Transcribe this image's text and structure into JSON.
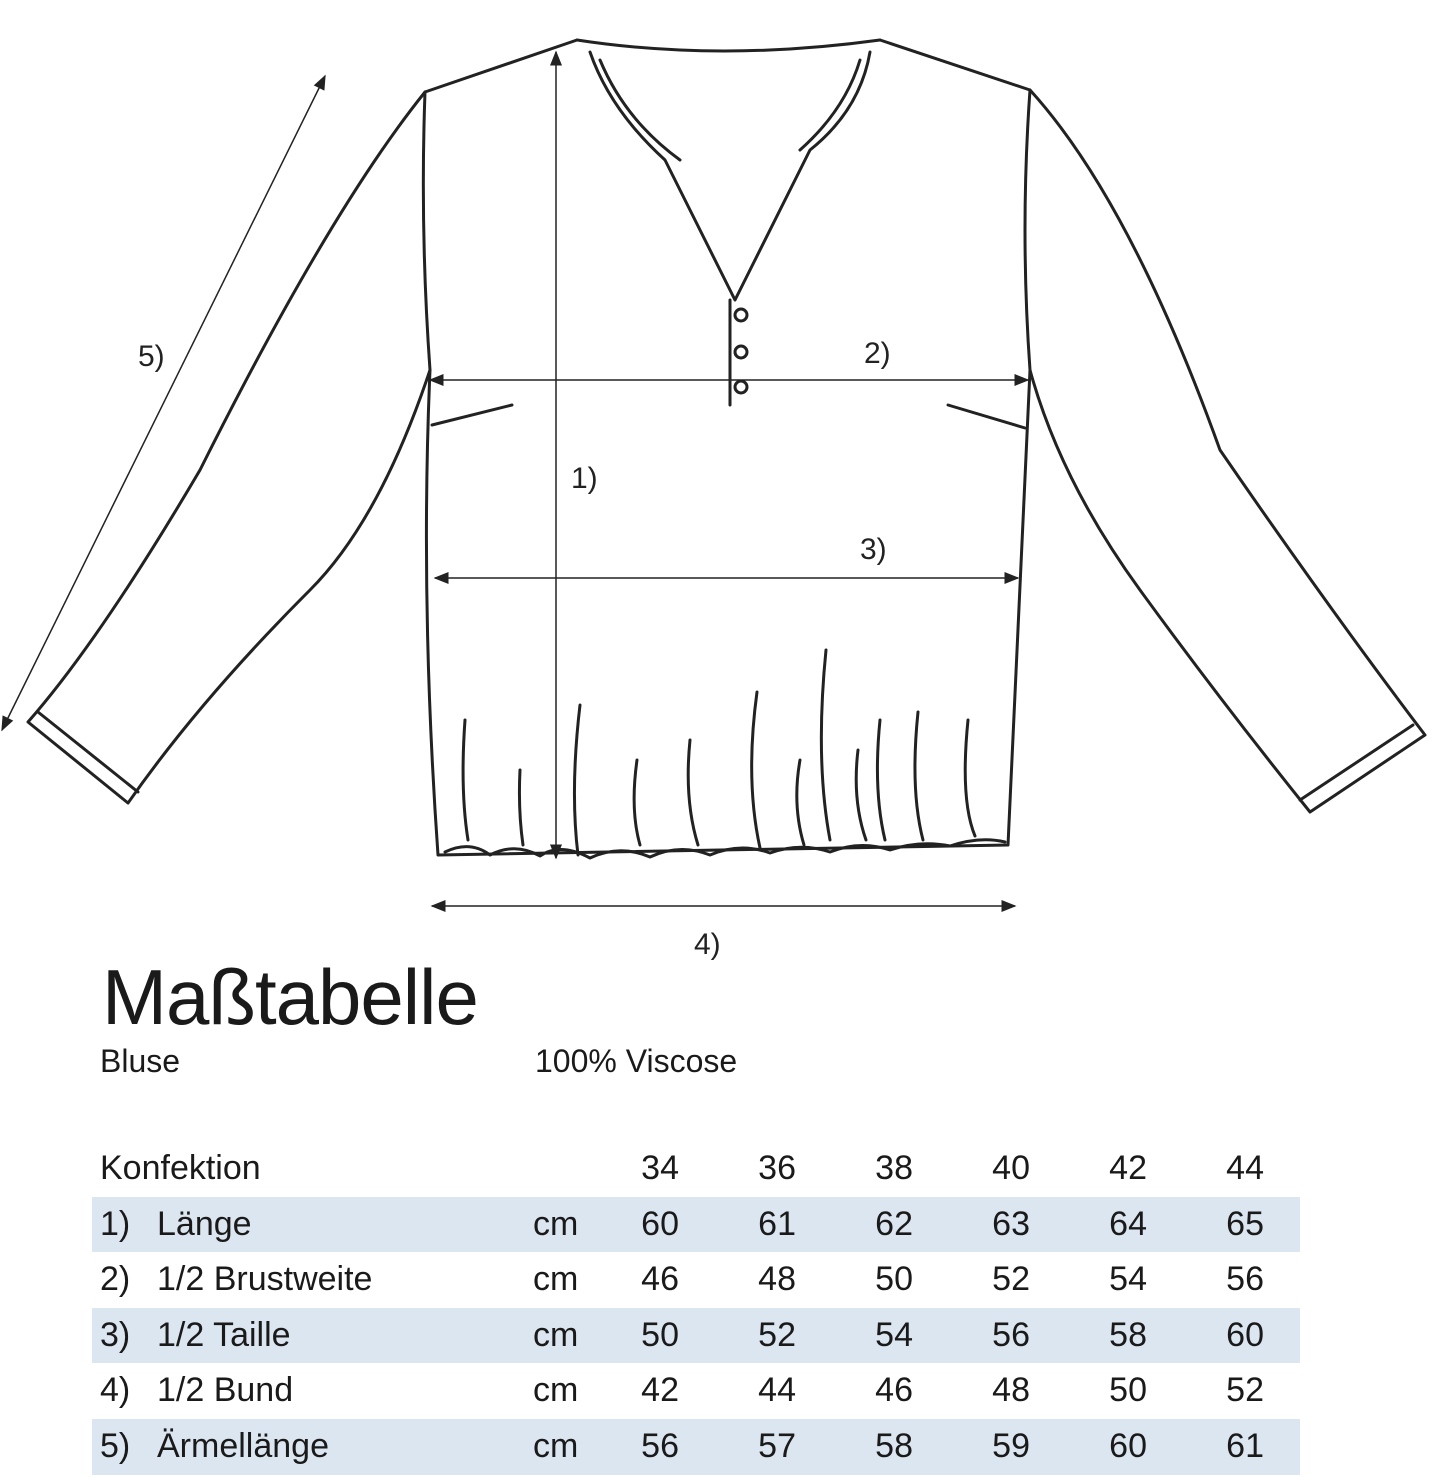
{
  "measure_labels": {
    "m1": "1)",
    "m2": "2)",
    "m3": "3)",
    "m4": "4)",
    "m5": "5)"
  },
  "title": "Maßtabelle",
  "subtitle": "Bluse",
  "material": "100% Viscose",
  "table": {
    "header": {
      "label": "Konfektion",
      "sizes": [
        "34",
        "36",
        "38",
        "40",
        "42",
        "44"
      ]
    },
    "rows": [
      {
        "num": "1)",
        "name": "Länge",
        "unit": "cm",
        "values": [
          "60",
          "61",
          "62",
          "63",
          "64",
          "65"
        ]
      },
      {
        "num": "2)",
        "name": "1/2 Brustweite",
        "unit": "cm",
        "values": [
          "46",
          "48",
          "50",
          "52",
          "54",
          "56"
        ]
      },
      {
        "num": "3)",
        "name": "1/2 Taille",
        "unit": "cm",
        "values": [
          "50",
          "52",
          "54",
          "56",
          "58",
          "60"
        ]
      },
      {
        "num": "4)",
        "name": "1/2 Bund",
        "unit": "cm",
        "values": [
          "42",
          "44",
          "46",
          "48",
          "50",
          "52"
        ]
      },
      {
        "num": "5)",
        "name": "Ärmellänge",
        "unit": "cm",
        "values": [
          "56",
          "57",
          "58",
          "59",
          "60",
          "61"
        ]
      }
    ]
  },
  "colors": {
    "row_shade": "#dce6f1",
    "ink": "#1a1a1a"
  }
}
